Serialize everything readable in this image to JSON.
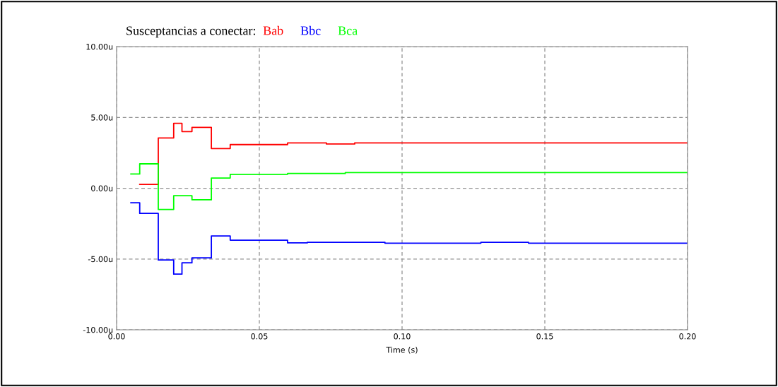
{
  "chart_data": {
    "type": "step",
    "title": "Susceptancias a conectar:",
    "xlabel": "Time (s)",
    "legend": "top left",
    "xlim": [
      0,
      0.2
    ],
    "xticks": [
      {
        "value": 0,
        "label": "0.00"
      },
      {
        "value": 0.05,
        "label": "0.05"
      },
      {
        "value": 0.1,
        "label": "0.10"
      },
      {
        "value": 0.15,
        "label": "0.15"
      },
      {
        "value": 0.2,
        "label": "0.20"
      }
    ],
    "ylim": [
      -10,
      10
    ],
    "yticks": [
      {
        "value": -10,
        "label": "-10.00u"
      },
      {
        "value": -5,
        "label": "-5.00u"
      },
      {
        "value": 0,
        "label": "0.00u"
      },
      {
        "value": 5,
        "label": "5.00u"
      },
      {
        "value": 10,
        "label": "10.00u"
      }
    ],
    "grid": true,
    "line_style": "solid",
    "marker": "none",
    "series": [
      {
        "name": "Bab",
        "color": "#ff0000",
        "x": [
          0.0081,
          0.0146,
          0.02,
          0.0229,
          0.0264,
          0.0332,
          0.0398,
          0.0599,
          0.0735,
          0.0834,
          0.2
        ],
        "values": [
          0.27,
          3.55,
          4.58,
          4.0,
          4.3,
          2.8,
          3.08,
          3.2,
          3.12,
          3.2,
          3.2
        ]
      },
      {
        "name": "Bbc",
        "color": "#0000ff",
        "x": [
          0.005,
          0.0081,
          0.0146,
          0.02,
          0.0229,
          0.0264,
          0.0332,
          0.0398,
          0.0599,
          0.0668,
          0.094,
          0.1276,
          0.1443,
          0.2
        ],
        "values": [
          -1.03,
          -1.78,
          -5.07,
          -6.07,
          -5.27,
          -4.92,
          -3.37,
          -3.67,
          -3.86,
          -3.82,
          -3.88,
          -3.82,
          -3.88,
          -3.88
        ]
      },
      {
        "name": "Bca",
        "color": "#00ff00",
        "x": [
          0.005,
          0.0081,
          0.0146,
          0.02,
          0.0264,
          0.0332,
          0.0398,
          0.0599,
          0.0801,
          0.2
        ],
        "values": [
          1.0,
          1.72,
          -1.5,
          -0.53,
          -0.82,
          0.72,
          0.98,
          1.04,
          1.1,
          1.1
        ]
      }
    ]
  }
}
